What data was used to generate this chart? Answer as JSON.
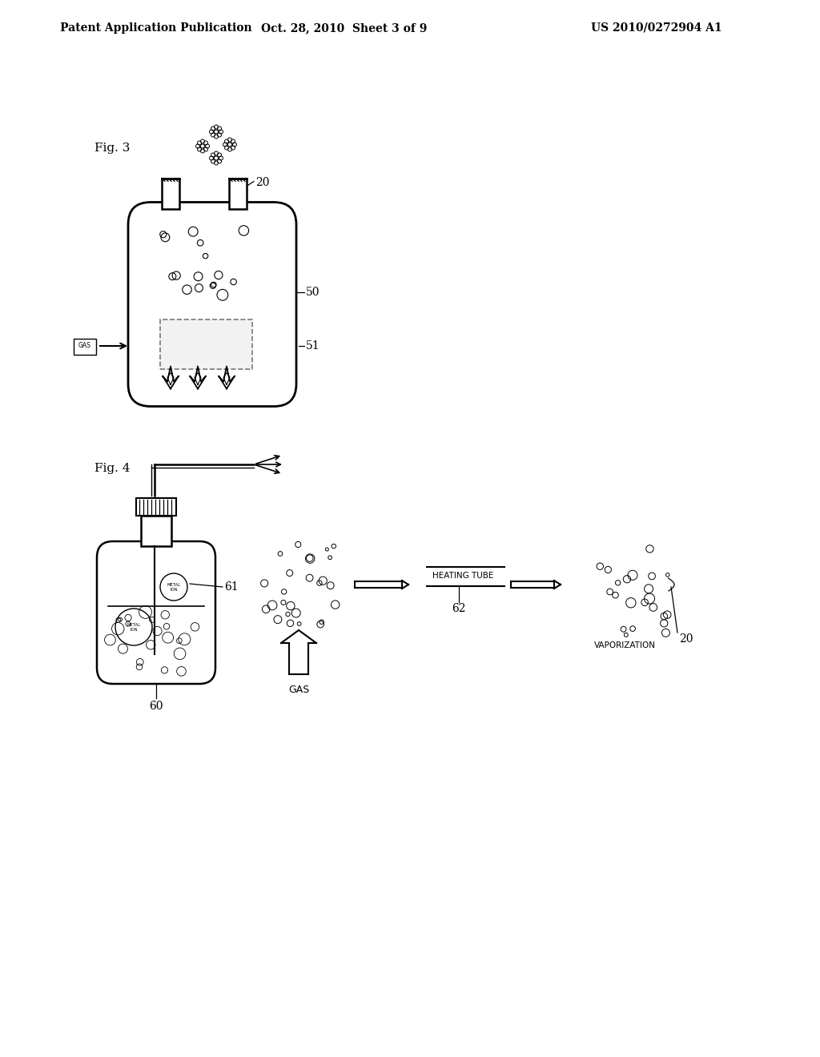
{
  "header_left": "Patent Application Publication",
  "header_mid": "Oct. 28, 2010  Sheet 3 of 9",
  "header_right": "US 2010/0272904 A1",
  "fig3_label": "Fig. 3",
  "fig4_label": "Fig. 4",
  "bg_color": "#ffffff",
  "line_color": "#000000"
}
